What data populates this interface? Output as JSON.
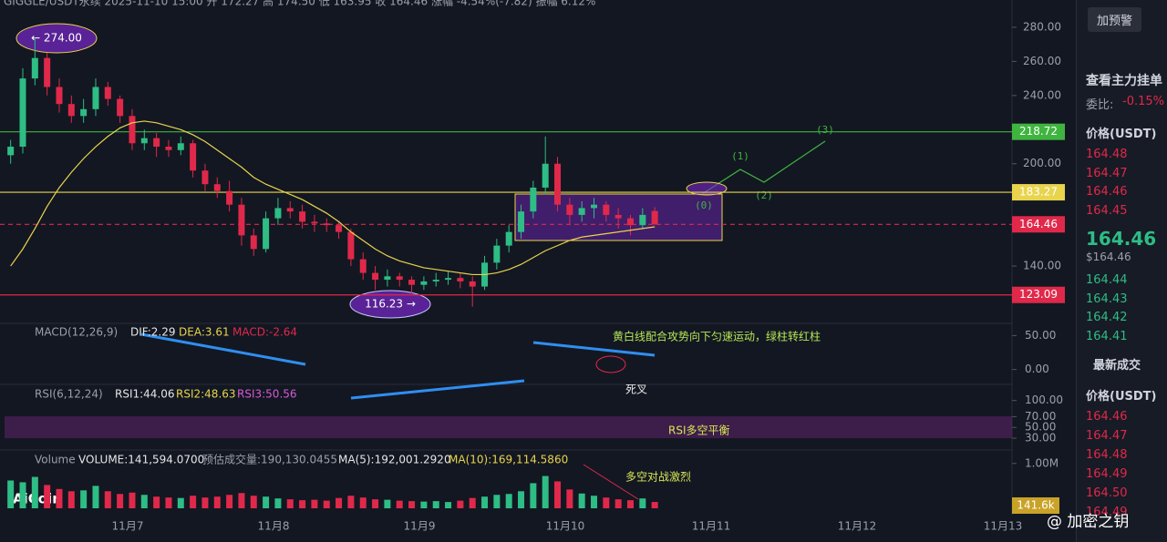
{
  "header": "GIGGLE/USDT永续  2025-11-10 15:00  开 172.27  高 174.50  低 163.95  收 164.46  涨幅 -4.54%(-7.82)  振幅 6.12%",
  "chart_data": {
    "type": "candlestick",
    "x_labels": [
      "11月7",
      "11月8",
      "11月9",
      "11月10",
      "11月11",
      "11月12",
      "11月13"
    ],
    "ylim": [
      108,
      296
    ],
    "yticks": [
      {
        "value": 280,
        "label": "280.00"
      },
      {
        "value": 260,
        "label": "260.00"
      },
      {
        "value": 240,
        "label": "240.00"
      },
      {
        "value": 200,
        "label": "200.00"
      },
      {
        "value": 140,
        "label": "140.00"
      }
    ],
    "candles": {
      "open": [
        205,
        210,
        250,
        262,
        245,
        235,
        228,
        232,
        245,
        238,
        228,
        212,
        215,
        210,
        208,
        212,
        196,
        188,
        184,
        176,
        158,
        150,
        168,
        174,
        172,
        166,
        165,
        164,
        160,
        144,
        136,
        132,
        134,
        132,
        129,
        131,
        132,
        133,
        131,
        128,
        142,
        152,
        160,
        172,
        186,
        200,
        176,
        170,
        174,
        176,
        170,
        168,
        164,
        172.27
      ],
      "high": [
        214,
        256,
        274,
        265,
        250,
        240,
        238,
        250,
        248,
        240,
        232,
        220,
        218,
        214,
        216,
        214,
        200,
        192,
        190,
        180,
        162,
        172,
        180,
        178,
        176,
        170,
        168,
        166,
        162,
        148,
        140,
        138,
        136,
        134,
        134,
        136,
        137,
        136,
        134,
        146,
        156,
        164,
        176,
        190,
        216,
        204,
        180,
        178,
        180,
        178,
        174,
        170,
        174,
        174.5
      ],
      "low": [
        200,
        206,
        246,
        240,
        230,
        224,
        224,
        228,
        234,
        224,
        208,
        208,
        204,
        204,
        205,
        192,
        184,
        180,
        172,
        152,
        146,
        148,
        164,
        168,
        162,
        160,
        160,
        156,
        140,
        132,
        126,
        128,
        128,
        124,
        126,
        128,
        129,
        127,
        116.23,
        126,
        138,
        148,
        156,
        168,
        182,
        172,
        164,
        166,
        168,
        166,
        162,
        158,
        162,
        163.95
      ],
      "close": [
        210,
        250,
        262,
        245,
        235,
        228,
        232,
        245,
        238,
        228,
        212,
        215,
        210,
        208,
        212,
        196,
        188,
        184,
        176,
        158,
        150,
        168,
        174,
        172,
        166,
        165,
        164,
        160,
        144,
        136,
        132,
        134,
        132,
        129,
        131,
        132,
        133,
        131,
        128,
        142,
        152,
        160,
        172,
        186,
        200,
        176,
        170,
        174,
        176,
        170,
        168,
        164,
        170,
        164.46
      ],
      "up_color": "#2ebd85",
      "down_color": "#e0294a"
    },
    "ma": {
      "color": "#e8d44d",
      "values": [
        140,
        150,
        162,
        175,
        186,
        195,
        203,
        210,
        216,
        221,
        224,
        225,
        224,
        222,
        220,
        217,
        213,
        208,
        203,
        198,
        192,
        188,
        185,
        182,
        179,
        175,
        171,
        166,
        160,
        155,
        150,
        146,
        143,
        141,
        139,
        138,
        137,
        136,
        135,
        135,
        136,
        138,
        141,
        145,
        149,
        152,
        155,
        157,
        158,
        159,
        160,
        161,
        162,
        163
      ]
    },
    "levels": [
      {
        "value": 218.72,
        "label": "218.72",
        "color": "#3fb53f"
      },
      {
        "value": 183.27,
        "label": "183.27",
        "color": "#e8d44d"
      },
      {
        "value": 164.46,
        "label": "164.46",
        "color": "#e0294a"
      },
      {
        "value": 123.09,
        "label": "123.09",
        "color": "#e0294a"
      }
    ],
    "annotations": {
      "high": "← 274.00",
      "low": "116.23 →",
      "points": [
        "(0)",
        "(1)",
        "(2)",
        "(3)"
      ],
      "macd_note": "黄白线配合攻势向下匀速运动，绿柱转红柱",
      "cross": "死叉",
      "rsi_note": "RSI多空平衡",
      "volume_note": "多空对战激烈"
    },
    "macd": {
      "name": "MACD(12,26,9)",
      "dif": "DIF:2.29",
      "dea": "DEA:3.61",
      "macd": "MACD:-2.64",
      "ylim": [
        -22,
        68
      ],
      "yticks": [
        {
          "value": 50,
          "label": "50.00"
        },
        {
          "value": 0,
          "label": "0.00"
        }
      ]
    },
    "rsi": {
      "name": "RSI(6,12,24)",
      "rsi1": "RSI1:44.06",
      "rsi2": "RSI2:48.63",
      "rsi3": "RSI3:50.56",
      "ylim": [
        8,
        130
      ],
      "yticks": [
        {
          "value": 100,
          "label": "100.00"
        },
        {
          "value": 70,
          "label": "70.00"
        },
        {
          "value": 50,
          "label": "50.00"
        },
        {
          "value": 30,
          "label": "30.00"
        }
      ]
    },
    "volume": {
      "name": "Volume",
      "volume": "VOLUME:141,594.0700",
      "estimate": "预估成交量:190,130.0455",
      "ma5": "MA(5):192,001.2920",
      "ma10": "MA(10):169,114.5860",
      "current_label": "141.6k",
      "ylim": [
        0,
        1300000
      ],
      "yticks": [
        {
          "value": 1000000,
          "label": "1.00M"
        }
      ],
      "values": [
        620000,
        580000,
        700000,
        520000,
        430000,
        380000,
        400000,
        500000,
        380000,
        320000,
        350000,
        300000,
        260000,
        240000,
        230000,
        280000,
        240000,
        260000,
        300000,
        340000,
        280000,
        260000,
        220000,
        200000,
        180000,
        190000,
        170000,
        230000,
        280000,
        240000,
        200000,
        190000,
        170000,
        160000,
        150000,
        160000,
        140000,
        170000,
        230000,
        260000,
        300000,
        320000,
        380000,
        560000,
        720000,
        600000,
        420000,
        330000,
        280000,
        240000,
        200000,
        180000,
        220000,
        141594.07
      ]
    }
  },
  "logo": "AiCoin",
  "sidebar": {
    "alert_button": "加预警",
    "main_orders": "查看主力挂单",
    "ratio_label": "委比:",
    "ratio": "-0.15%",
    "price_header": "价格(USDT)",
    "asks": [
      "164.48",
      "164.47",
      "164.46",
      "164.45"
    ],
    "last_price": "164.46",
    "last_usd": "$164.46",
    "bids": [
      "164.44",
      "164.43",
      "164.42",
      "164.41"
    ],
    "trades_title": "最新成交",
    "trades_header": "价格(USDT)",
    "trades": [
      "164.46",
      "164.47",
      "164.48",
      "164.49",
      "164.50",
      "164.49"
    ]
  },
  "watermark": "@ 加密之钥"
}
